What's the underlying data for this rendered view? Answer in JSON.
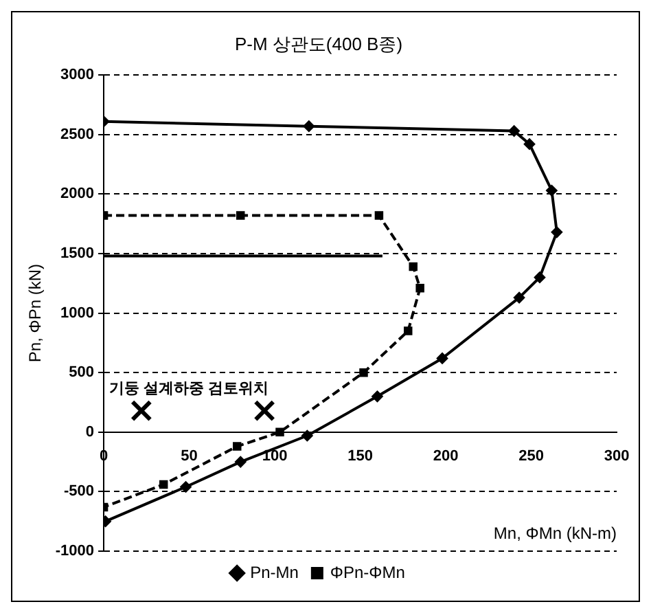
{
  "chart_data": {
    "type": "line",
    "title": "P-M 상관도(400 B종)",
    "xlabel": "Mn, ΦMn (kN-m)",
    "ylabel": "Pn, ΦPn (kN)",
    "xlim": [
      0,
      300
    ],
    "xticks": [
      0,
      50,
      100,
      150,
      200,
      250,
      300
    ],
    "ylim": [
      -1000,
      3000
    ],
    "yticks": [
      -1000,
      -500,
      0,
      500,
      1000,
      1500,
      2000,
      2500,
      3000
    ],
    "grid": "y",
    "legend": "bottom",
    "annotations": [
      "기둥 설계하중 검토위치"
    ],
    "series": [
      {
        "name": "Pn-Mn",
        "color": "#000000",
        "marker": "diamond",
        "line_style": "solid",
        "x": [
          0,
          120,
          240,
          249,
          262,
          265,
          255,
          243,
          198,
          160,
          119,
          80,
          48,
          1
        ],
        "values": [
          2610,
          2570,
          2530,
          2420,
          2030,
          1680,
          1300,
          1130,
          620,
          300,
          -30,
          -250,
          -460,
          -750
        ]
      },
      {
        "name": "ΦPn-ΦMn",
        "color": "#000000",
        "marker": "square",
        "line_style": "dashed",
        "x": [
          0,
          80,
          161,
          181,
          185,
          178,
          152,
          103,
          78,
          35,
          0
        ],
        "values": [
          1820,
          1820,
          1820,
          1390,
          1210,
          850,
          500,
          0,
          -120,
          -440,
          -630
        ]
      },
      {
        "color": "#000000",
        "marker": "none",
        "line_style": "solid",
        "x": [
          0,
          163
        ],
        "values": [
          1480,
          1480
        ]
      },
      {
        "type": "scatter",
        "color": "#000000",
        "marker": "cross",
        "x": [
          22,
          94
        ],
        "values": [
          180,
          180
        ]
      }
    ]
  }
}
